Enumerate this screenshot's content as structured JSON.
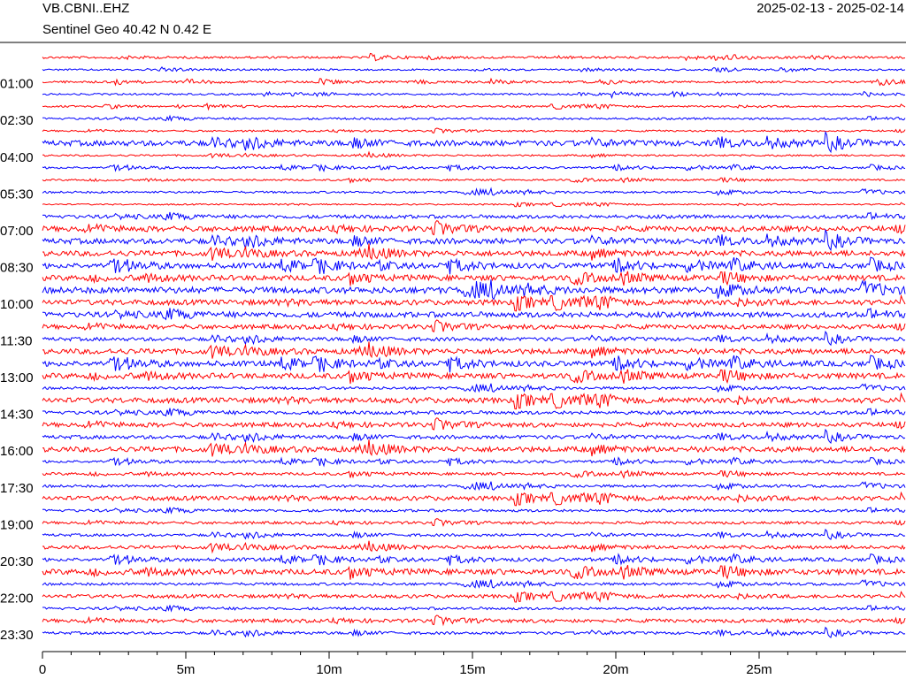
{
  "chart_data": {
    "type": "helicorder",
    "title": "VB.CBNI..EHZ",
    "subtitle": "Sentinel Geo  40.42 N 0.42 E",
    "date_range": "2025-02-13 - 2025-02-14",
    "colors": [
      "#ff0000",
      "#0000ff"
    ],
    "categories": [
      null,
      null,
      "01:00",
      null,
      null,
      "02:30",
      null,
      null,
      "04:00",
      null,
      null,
      "05:30",
      null,
      null,
      "07:00",
      null,
      null,
      "08:30",
      null,
      null,
      "10:00",
      null,
      null,
      "11:30",
      null,
      null,
      "13:00",
      null,
      null,
      "14:30",
      null,
      null,
      "16:00",
      null,
      null,
      "17:30",
      null,
      null,
      "19:00",
      null,
      null,
      "20:30",
      null,
      null,
      "22:00",
      null,
      null,
      "23:30"
    ],
    "values": [
      1.2,
      1,
      1.2,
      1,
      1,
      1.2,
      1,
      3,
      1,
      1.2,
      1,
      1.2,
      0.8,
      2,
      3,
      3,
      3,
      3,
      3,
      3.5,
      3,
      3,
      2.5,
      2,
      3,
      3,
      3,
      1.5,
      3,
      2,
      2.5,
      2,
      3,
      1.5,
      1.5,
      1.5,
      2.5,
      1.5,
      1.5,
      1.5,
      2,
      2,
      3,
      1.5,
      2,
      1.5,
      2,
      1.5
    ],
    "xlim": [
      0,
      30
    ],
    "xticks": [
      {
        "value": 0,
        "label": "0"
      },
      {
        "value": 5,
        "label": "5m"
      },
      {
        "value": 10,
        "label": "10m"
      },
      {
        "value": 15,
        "label": "15m"
      },
      {
        "value": 20,
        "label": "20m"
      },
      {
        "value": 25,
        "label": "25m"
      }
    ],
    "minor_tick_step": 1
  }
}
